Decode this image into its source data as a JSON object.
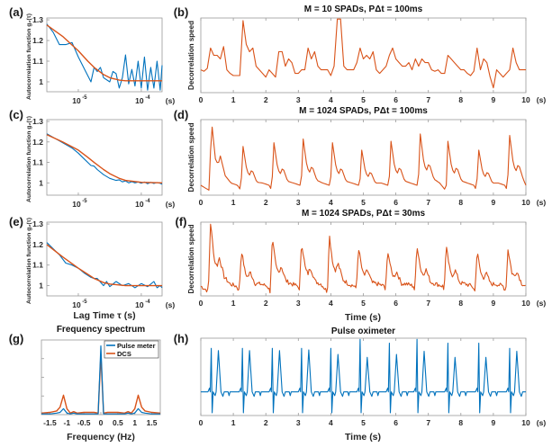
{
  "colors": {
    "measured": "#0072BD",
    "fit": "#D95319",
    "dcs": "#D95319",
    "pulse": "#0072BD",
    "axes": "#9a9a9a"
  },
  "shared": {
    "unit_s": "(s)",
    "lag_xlabel": "Lag Time τ (s)",
    "time_xlabel": "Time (s)",
    "decor_ylabel": "Decorrelation speed",
    "acf_ylabel": "Autocorrelation function g₂(τ)"
  },
  "chart_data": [
    {
      "id": "a",
      "panel_label": "(a)",
      "type": "line",
      "xscale": "log",
      "xlim_log10": [
        -5.5,
        -3.67
      ],
      "ylim": [
        0.952,
        1.309
      ],
      "yticks": [
        {
          "v": 1.3,
          "label": "1.3"
        },
        {
          "v": 1.2,
          "label": "1.2"
        },
        {
          "v": 1.1,
          "label": "1.1"
        },
        {
          "v": 1,
          "label": "1"
        }
      ],
      "xticks": [
        {
          "v": -5,
          "base": "10",
          "exp": "-5"
        },
        {
          "v": -4,
          "base": "10",
          "exp": "-4"
        }
      ],
      "series": [
        {
          "name": "measured",
          "x_log10": [
            -5.5,
            -5.4,
            -5.3,
            -5.2,
            -5.1,
            -5.0,
            -4.9,
            -4.8,
            -4.75,
            -4.7,
            -4.65,
            -4.6,
            -4.5,
            -4.45,
            -4.4,
            -4.35,
            -4.3,
            -4.25,
            -4.2,
            -4.15,
            -4.1,
            -4.05,
            -4.0,
            -3.95,
            -3.9,
            -3.85,
            -3.8,
            -3.75,
            -3.7,
            -3.67
          ],
          "y": [
            1.28,
            1.24,
            1.18,
            1.18,
            1.19,
            1.12,
            1.06,
            1.0,
            1.07,
            1.05,
            1.07,
            1.02,
            1.0,
            1.05,
            1.04,
            0.97,
            1.02,
            1.13,
            0.99,
            1.06,
            0.98,
            1.1,
            0.97,
            1.12,
            0.96,
            1.07,
            0.97,
            1.1,
            0.96,
            1.08
          ]
        },
        {
          "name": "fit",
          "x_log10": [
            -5.5,
            -5.25,
            -5.0,
            -4.85,
            -4.75,
            -4.6,
            -4.5,
            -4.35,
            -4.25,
            -4.0,
            -3.67
          ],
          "y": [
            1.275,
            1.22,
            1.15,
            1.1,
            1.07,
            1.035,
            1.02,
            1.008,
            1.005,
            1.005,
            1.005
          ]
        }
      ]
    },
    {
      "id": "c",
      "panel_label": "(c)",
      "type": "line",
      "xscale": "log",
      "xlim_log10": [
        -5.5,
        -3.67
      ],
      "ylim": [
        0.94,
        1.309
      ],
      "yticks": [
        {
          "v": 1.3,
          "label": "1.3"
        },
        {
          "v": 1.2,
          "label": "1.2"
        },
        {
          "v": 1.1,
          "label": "1.1"
        },
        {
          "v": 1,
          "label": "1"
        }
      ],
      "xticks": [
        {
          "v": -5,
          "base": "10",
          "exp": "-5"
        },
        {
          "v": -4,
          "base": "10",
          "exp": "-4"
        }
      ],
      "series": [
        {
          "name": "measured",
          "x_log10": [
            -5.5,
            -5.3,
            -5.1,
            -5.0,
            -4.9,
            -4.8,
            -4.75,
            -4.7,
            -4.6,
            -4.5,
            -4.4,
            -4.35,
            -4.3,
            -4.25,
            -4.2,
            -4.15,
            -4.1,
            -4.05,
            -4.0,
            -3.95,
            -3.9,
            -3.85,
            -3.8,
            -3.75,
            -3.7,
            -3.67
          ],
          "y": [
            1.24,
            1.205,
            1.17,
            1.145,
            1.115,
            1.085,
            1.082,
            1.065,
            1.04,
            1.022,
            1.012,
            1.015,
            1.005,
            1.01,
            1.0,
            1.006,
            1.0,
            1.004,
            0.998,
            1.004,
            0.996,
            1.003,
            0.997,
            1.002,
            0.998,
            0.993
          ]
        },
        {
          "name": "fit",
          "x_log10": [
            -5.5,
            -5.25,
            -5.0,
            -4.85,
            -4.75,
            -4.6,
            -4.5,
            -4.35,
            -4.25,
            -4.0,
            -3.67
          ],
          "y": [
            1.235,
            1.2,
            1.16,
            1.125,
            1.1,
            1.065,
            1.045,
            1.022,
            1.012,
            1.003,
            1.0
          ]
        }
      ]
    },
    {
      "id": "e",
      "panel_label": "(e)",
      "type": "line",
      "xscale": "log",
      "xlim_log10": [
        -5.5,
        -3.67
      ],
      "ylim": [
        0.95,
        1.309
      ],
      "yticks": [
        {
          "v": 1.3,
          "label": "1.3"
        },
        {
          "v": 1.2,
          "label": "1.2"
        },
        {
          "v": 1.1,
          "label": "1.1"
        },
        {
          "v": 1,
          "label": "1"
        }
      ],
      "xticks": [
        {
          "v": -5,
          "base": "10",
          "exp": "-5"
        },
        {
          "v": -4,
          "base": "10",
          "exp": "-4"
        }
      ],
      "series": [
        {
          "name": "measured",
          "x_log10": [
            -5.5,
            -5.4,
            -5.3,
            -5.2,
            -5.1,
            -5.0,
            -4.9,
            -4.8,
            -4.75,
            -4.7,
            -4.6,
            -4.55,
            -4.5,
            -4.4,
            -4.3,
            -4.2,
            -4.1,
            -4.0,
            -3.9,
            -3.8,
            -3.75,
            -3.7,
            -3.67
          ],
          "y": [
            1.21,
            1.18,
            1.15,
            1.11,
            1.1,
            1.085,
            1.06,
            1.04,
            1.035,
            1.035,
            1.0,
            1.02,
            0.995,
            1.02,
            1.0,
            1.01,
            0.99,
            1.01,
            0.995,
            1.02,
            0.99,
            1.0,
            0.99
          ]
        },
        {
          "name": "fit",
          "x_log10": [
            -5.5,
            -5.25,
            -5.0,
            -4.85,
            -4.75,
            -4.6,
            -4.5,
            -4.25,
            -4.0,
            -3.67
          ],
          "y": [
            1.2,
            1.14,
            1.085,
            1.055,
            1.035,
            1.015,
            1.008,
            1.0,
            1.0,
            1.0
          ]
        }
      ]
    },
    {
      "id": "b",
      "panel_label": "(b)",
      "type": "line",
      "title": "M = 10 SPADs, PΔt = 100ms",
      "xlim": [
        0,
        10
      ],
      "ylim_normalized": [
        0,
        1
      ],
      "xticks": [
        "0",
        "1",
        "2",
        "3",
        "4",
        "5",
        "6",
        "7",
        "8",
        "9",
        "10"
      ],
      "series": [
        {
          "name": "DCS",
          "sample_interval_s": 0.1,
          "y": [
            0.3,
            0.28,
            0.32,
            0.6,
            0.5,
            0.5,
            0.45,
            0.62,
            0.3,
            0.25,
            0.22,
            0.22,
            0.22,
            0.98,
            0.65,
            0.55,
            0.6,
            0.35,
            0.3,
            0.25,
            0.2,
            0.3,
            0.25,
            0.2,
            0.55,
            0.55,
            0.35,
            0.45,
            0.4,
            0.25,
            0.25,
            0.3,
            0.3,
            0.6,
            0.45,
            0.55,
            0.35,
            0.3,
            0.3,
            0.3,
            0.22,
            0.35,
            1.0,
            1.0,
            0.35,
            0.3,
            0.3,
            0.3,
            0.4,
            0.6,
            0.45,
            0.5,
            0.45,
            0.55,
            0.3,
            0.25,
            0.3,
            0.35,
            0.5,
            0.6,
            0.45,
            0.4,
            0.35,
            0.35,
            0.4,
            0.3,
            0.45,
            0.35,
            0.45,
            0.4,
            0.4,
            0.3,
            0.28,
            0.3,
            0.25,
            0.25,
            0.5,
            0.45,
            0.4,
            0.35,
            0.3,
            0.3,
            0.25,
            0.22,
            0.28,
            0.6,
            0.3,
            0.45,
            0.4,
            0.2,
            0.05,
            0.3,
            0.25,
            0.2,
            0.25,
            0.3,
            0.6,
            0.4,
            0.3,
            0.3,
            0.3
          ]
        }
      ]
    },
    {
      "id": "d",
      "panel_label": "(d)",
      "type": "line",
      "title": "M = 1024 SPADs, PΔt = 100ms",
      "xlim": [
        0,
        10
      ],
      "ylim_normalized": [
        0,
        1
      ],
      "xticks": [
        "0",
        "1",
        "2",
        "3",
        "4",
        "5",
        "6",
        "7",
        "8",
        "9",
        "10"
      ],
      "series": [
        {
          "name": "DCS",
          "beat_times_s": [
            0.33,
            1.3,
            2.25,
            3.15,
            4.05,
            4.95,
            5.85,
            6.75,
            7.6,
            8.55,
            9.5
          ],
          "peak_values": [
            1.0,
            0.65,
            0.7,
            0.75,
            0.7,
            0.6,
            0.72,
            0.82,
            0.72,
            0.6,
            0.8
          ],
          "noise": 0.0
        }
      ]
    },
    {
      "id": "f",
      "panel_label": "(f)",
      "type": "line",
      "title": "M = 1024 SPADs, PΔt = 30ms",
      "xlim": [
        0,
        10
      ],
      "ylim_normalized": [
        0,
        1
      ],
      "xticks": [
        "0",
        "1",
        "2",
        "3",
        "4",
        "5",
        "6",
        "7",
        "8",
        "9",
        "10"
      ],
      "series": [
        {
          "name": "DCS",
          "beat_times_s": [
            0.3,
            1.25,
            2.2,
            3.1,
            3.95,
            4.85,
            5.75,
            6.65,
            7.55,
            8.5,
            9.45
          ],
          "peak_values": [
            1.0,
            0.62,
            0.78,
            0.74,
            0.85,
            0.67,
            0.63,
            0.7,
            0.67,
            0.6,
            0.64
          ],
          "noise": 0.03
        }
      ]
    },
    {
      "id": "g",
      "panel_label": "(g)",
      "type": "line",
      "title": "Frequency spectrum",
      "xlabel": "Frequency (Hz)",
      "xlim": [
        -1.75,
        1.75
      ],
      "ylim_normalized": [
        0,
        1
      ],
      "xticks": [
        {
          "v": -1.5,
          "label": "-1.5"
        },
        {
          "v": -1,
          "label": "-1"
        },
        {
          "v": -0.5,
          "label": "-0.5"
        },
        {
          "v": 0,
          "label": "0"
        },
        {
          "v": 0.5,
          "label": "0.5"
        },
        {
          "v": 1,
          "label": "1"
        },
        {
          "v": 1.5,
          "label": "1.5"
        }
      ],
      "legend": {
        "position": "top-right",
        "entries": [
          "Pulse meter",
          "DCS"
        ]
      },
      "x": [
        -1.75,
        -1.5,
        -1.3,
        -1.2,
        -1.1,
        -1.0,
        -0.9,
        -0.8,
        -0.7,
        -0.5,
        -0.2,
        -0.08,
        0,
        0.08,
        0.2,
        0.5,
        0.7,
        0.8,
        0.9,
        1.0,
        1.1,
        1.2,
        1.3,
        1.5,
        1.75
      ],
      "series": [
        {
          "name": "Pulse meter",
          "y": [
            0.01,
            0.01,
            0.02,
            0.03,
            0.08,
            0.02,
            0.01,
            0.02,
            0.01,
            0.01,
            0.01,
            0.01,
            0.92,
            0.01,
            0.01,
            0.01,
            0.01,
            0.02,
            0.01,
            0.02,
            0.08,
            0.03,
            0.02,
            0.01,
            0.01
          ]
        },
        {
          "name": "DCS",
          "y": [
            0.02,
            0.03,
            0.05,
            0.1,
            0.26,
            0.08,
            0.02,
            0.04,
            0.02,
            0.03,
            0.03,
            0.02,
            0.8,
            0.02,
            0.03,
            0.03,
            0.02,
            0.04,
            0.02,
            0.08,
            0.26,
            0.1,
            0.05,
            0.03,
            0.02
          ]
        }
      ]
    },
    {
      "id": "h",
      "panel_label": "(h)",
      "type": "line",
      "title": "Pulse oximeter",
      "xlim": [
        0,
        10
      ],
      "ylim_normalized": [
        0,
        1
      ],
      "xticks": [
        "0",
        "1",
        "2",
        "3",
        "4",
        "5",
        "6",
        "7",
        "8",
        "9",
        "10"
      ],
      "series": [
        {
          "name": "Pulse oximeter",
          "beat_times_s": [
            0.32,
            1.28,
            2.2,
            3.1,
            4.0,
            4.9,
            5.8,
            6.65,
            7.6,
            8.55,
            9.5
          ],
          "spike_values": [
            0.88,
            0.88,
            0.88,
            0.88,
            0.88,
            1.0,
            0.95,
            1.0,
            0.95,
            0.95,
            0.88
          ],
          "pulse_values": [
            0.85,
            0.85,
            0.85,
            0.86,
            0.8,
            0.76,
            0.8,
            0.84,
            0.76,
            0.76,
            0.84
          ],
          "baseline": 0.3
        }
      ]
    }
  ]
}
